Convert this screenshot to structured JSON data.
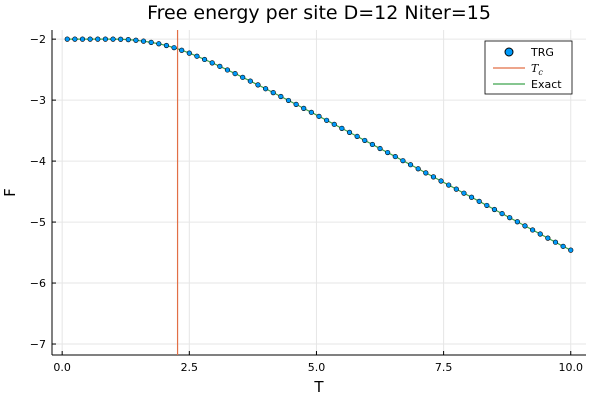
{
  "chart_data": {
    "type": "line",
    "title": "Free energy per site D=12 Niter=15",
    "xlabel": "T",
    "ylabel": "F",
    "xlim": [
      -0.2,
      10.3
    ],
    "ylim": [
      -7.18,
      -1.85
    ],
    "xticks": [
      0.0,
      2.5,
      5.0,
      7.5,
      10.0
    ],
    "xtick_labels": [
      "0.0",
      "2.5",
      "5.0",
      "7.5",
      "10.0"
    ],
    "yticks": [
      -7,
      -6,
      -5,
      -4,
      -3,
      -2
    ],
    "ytick_labels": [
      "−7",
      "−6",
      "−5",
      "−4",
      "−3",
      "−2"
    ],
    "grid": true,
    "legend_position": "top-right",
    "series": [
      {
        "name": "TRG",
        "kind": "scatter",
        "color": "#009AFA",
        "x": [
          0.1,
          0.25,
          0.4,
          0.55,
          0.7,
          0.85,
          1.0,
          1.15,
          1.3,
          1.45,
          1.6,
          1.75,
          1.9,
          2.05,
          2.2,
          2.35,
          2.5,
          2.65,
          2.8,
          2.95,
          3.1,
          3.25,
          3.4,
          3.55,
          3.7,
          3.85,
          4.0,
          4.15,
          4.3,
          4.45,
          4.6,
          4.75,
          4.9,
          5.05,
          5.2,
          5.35,
          5.5,
          5.65,
          5.8,
          5.95,
          6.1,
          6.25,
          6.4,
          6.55,
          6.7,
          6.85,
          7.0,
          7.15,
          7.3,
          7.45,
          7.6,
          7.75,
          7.9,
          8.05,
          8.2,
          8.35,
          8.5,
          8.65,
          8.8,
          8.95,
          9.1,
          9.25,
          9.4,
          9.55,
          9.7,
          9.85,
          10.0
        ],
        "y": [
          -2.0,
          -2.0,
          -2.0,
          -2.0,
          -2.0,
          -2.0,
          -2.0,
          -2.002,
          -2.008,
          -2.018,
          -2.033,
          -2.053,
          -2.076,
          -2.104,
          -2.14,
          -2.182,
          -2.229,
          -2.28,
          -2.333,
          -2.389,
          -2.446,
          -2.505,
          -2.565,
          -2.626,
          -2.688,
          -2.75,
          -2.813,
          -2.877,
          -2.941,
          -3.005,
          -3.07,
          -3.135,
          -3.2,
          -3.266,
          -3.331,
          -3.397,
          -3.463,
          -3.529,
          -3.595,
          -3.661,
          -3.727,
          -3.794,
          -3.86,
          -3.926,
          -3.993,
          -4.059,
          -4.126,
          -4.193,
          -4.259,
          -4.326,
          -4.393,
          -4.46,
          -4.526,
          -4.593,
          -4.66,
          -4.727,
          -4.794,
          -4.861,
          -4.928,
          -4.995,
          -5.062,
          -5.129,
          -5.196,
          -5.263,
          -5.33,
          -5.398,
          -5.46
        ]
      },
      {
        "name": "T_c",
        "kind": "vline",
        "color": "#E26F46",
        "x": 2.269
      },
      {
        "name": "Exact",
        "kind": "line",
        "color": "#3DA44D"
      }
    ],
    "legend": [
      {
        "label": "TRG",
        "marker": "circle",
        "color": "#009AFA"
      },
      {
        "label": "T",
        "sub": "c",
        "marker": "line",
        "color": "#E26F46"
      },
      {
        "label": "Exact",
        "marker": "line",
        "color": "#3DA44D"
      }
    ]
  }
}
